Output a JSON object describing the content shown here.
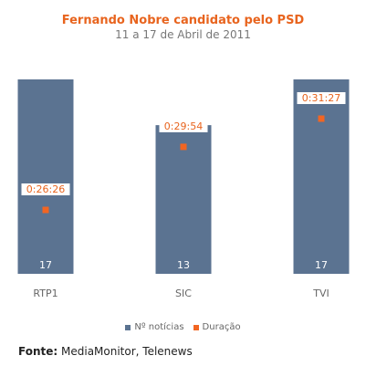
{
  "chart_data": {
    "type": "bar",
    "title": "Fernando Nobre candidato pelo PSD",
    "subtitle": "11 a 17 de Abril de 2011",
    "categories": [
      "RTP1",
      "SIC",
      "TVI"
    ],
    "series": [
      {
        "name": "Nº notícias",
        "type": "bar",
        "values": [
          17,
          13,
          17
        ],
        "color": "#5b7391"
      },
      {
        "name": "Duração",
        "type": "point",
        "values": [
          "0:26:26",
          "0:29:54",
          "0:31:27"
        ],
        "seconds": [
          1586,
          1794,
          1887
        ],
        "color": "#f26522"
      }
    ],
    "ylim_bars": [
      0,
      17
    ],
    "ylim_duration_seconds": [
      0,
      1887
    ],
    "legend": "bottom-center",
    "grid": false
  },
  "source": {
    "label": "Fonte:",
    "text": "MediaMonitor, Telenews"
  }
}
